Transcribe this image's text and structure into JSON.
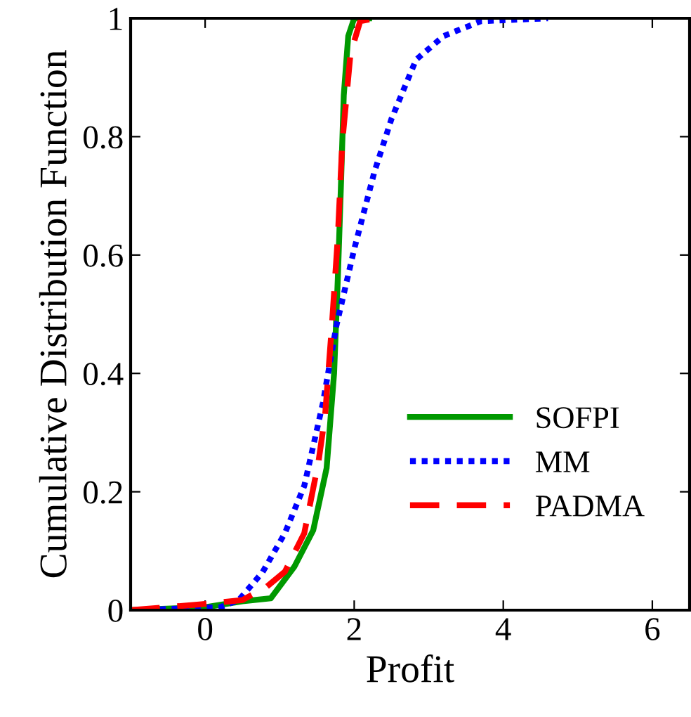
{
  "chart_data": {
    "type": "line",
    "xlabel": "Profit",
    "ylabel": "Cumulative Distribution Function",
    "xlim": [
      -1,
      6.5
    ],
    "ylim": [
      0,
      1
    ],
    "xticks": [
      0,
      2,
      4,
      6
    ],
    "yticks": [
      0,
      0.2,
      0.4,
      0.6,
      0.8,
      1
    ],
    "grid": false,
    "legend": "bottom right",
    "series": [
      {
        "name": "SOFPI",
        "color": "#009900",
        "line_style": "solid",
        "x": [
          -1,
          0,
          0.5,
          0.88,
          1.2,
          1.45,
          1.63,
          1.73,
          1.78,
          1.82,
          1.86,
          1.92,
          2.0,
          2.2
        ],
        "values": [
          0,
          0.005,
          0.015,
          0.02,
          0.074,
          0.135,
          0.24,
          0.4,
          0.56,
          0.71,
          0.87,
          0.97,
          1,
          1
        ]
      },
      {
        "name": "MM",
        "color": "#0000ff",
        "line_style": "dotted",
        "x": [
          -0.92,
          0.2,
          0.45,
          0.77,
          1.07,
          1.33,
          1.58,
          1.76,
          2.0,
          2.27,
          2.5,
          2.83,
          3.2,
          3.7,
          4.6
        ],
        "values": [
          0,
          0.005,
          0.017,
          0.064,
          0.13,
          0.21,
          0.35,
          0.48,
          0.61,
          0.74,
          0.83,
          0.93,
          0.97,
          0.995,
          1
        ]
      },
      {
        "name": "PADMA",
        "color": "#ff0000",
        "line_style": "dashed",
        "x": [
          -1,
          -0.05,
          0.5,
          0.83,
          1.07,
          1.33,
          1.52,
          1.61,
          1.7,
          1.78,
          1.84,
          1.95,
          2.08,
          2.29
        ],
        "values": [
          0,
          0.01,
          0.017,
          0.04,
          0.065,
          0.13,
          0.25,
          0.33,
          0.48,
          0.63,
          0.79,
          0.94,
          0.995,
          1
        ]
      }
    ]
  }
}
